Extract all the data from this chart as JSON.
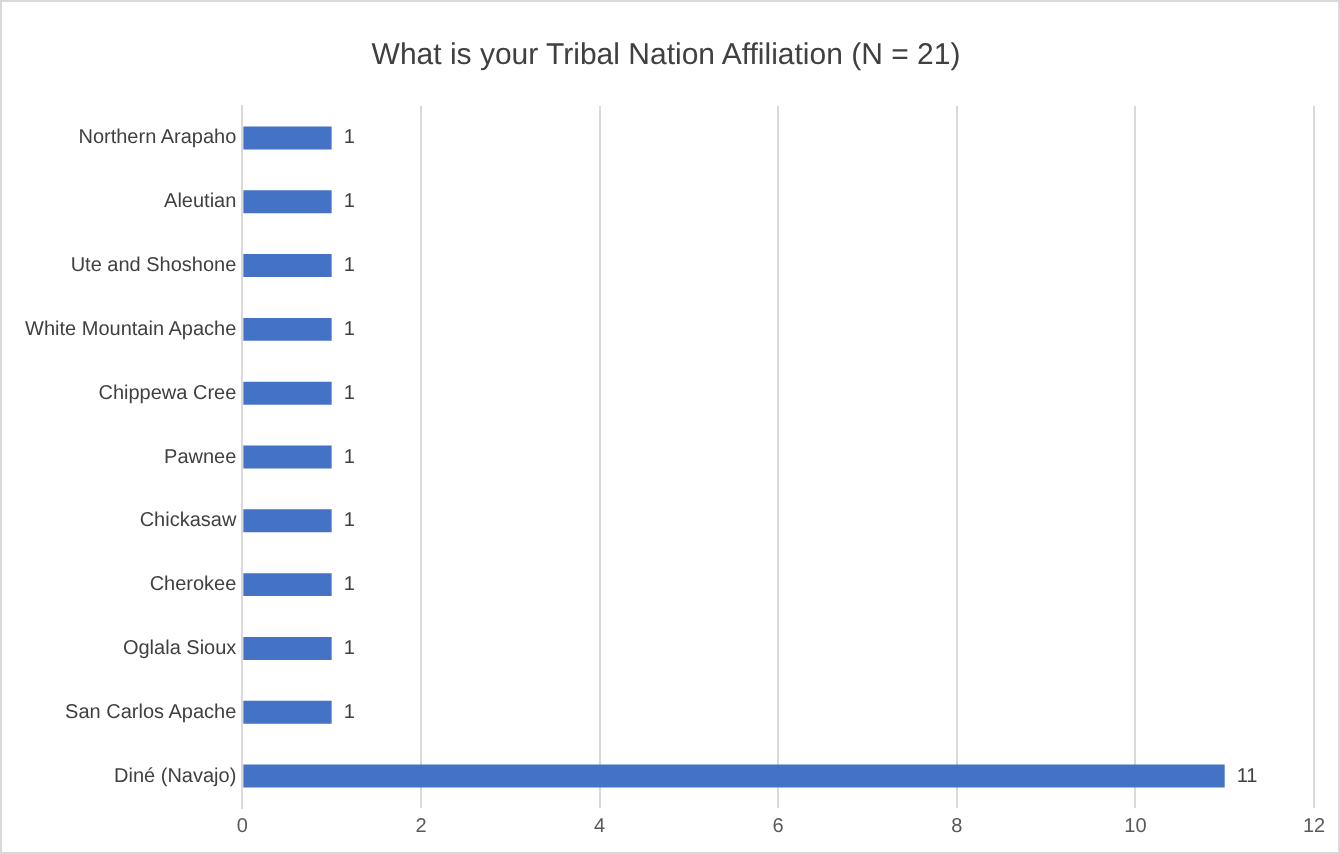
{
  "chart_data": {
    "type": "bar",
    "orientation": "horizontal",
    "title": "What is your Tribal Nation Affiliation (N = 21)",
    "categories": [
      "Northern Arapaho",
      "Aleutian",
      "Ute and Shoshone",
      "White Mountain Apache",
      "Chippewa Cree",
      "Pawnee",
      "Chickasaw",
      "Cherokee",
      "Oglala Sioux",
      "San Carlos Apache",
      "Diné (Navajo)"
    ],
    "values": [
      1,
      1,
      1,
      1,
      1,
      1,
      1,
      1,
      1,
      1,
      11
    ],
    "color": "#4472c4",
    "xlim": [
      0,
      12
    ],
    "xticks": [
      0,
      2,
      4,
      6,
      8,
      10,
      12
    ],
    "grid": "x",
    "data_labels": true,
    "legend": false
  }
}
